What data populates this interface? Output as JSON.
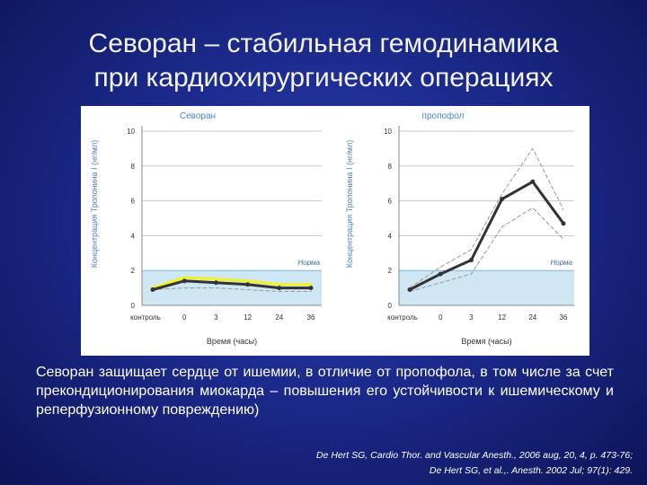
{
  "slide": {
    "title_line1": "Севоран – стабильная гемодинамика",
    "title_line2": "при кардиохирургических операциях",
    "body": "Севоран защищает сердце от ишемии, в отличие от пропофола, в том числе за счет прекондиционирования миокарда – повышения его устойчивости к ишемическому и реперфузионному повреждению)",
    "ref1": "De Hert SG, Cardio Thor. and Vascular Anesth., 2006 aug, 20, 4, p. 473-76;",
    "ref2": "De Hert SG, et al.,. Anesth. 2002 Jul; 97(1): 429."
  },
  "chart_data": [
    {
      "type": "line",
      "title": "Севоран",
      "xlabel": "Время (часы)",
      "ylabel": "Концентрация Тропонина I (нг/мл)",
      "categories": [
        "контроль",
        "0",
        "3",
        "12",
        "24",
        "36"
      ],
      "ylim": [
        0,
        10
      ],
      "yticks": [
        0,
        2,
        4,
        6,
        8,
        10
      ],
      "norm_label": "Норма",
      "norm_range": [
        0,
        2
      ],
      "series": [
        {
          "role": "mean",
          "values": [
            0.9,
            1.4,
            1.3,
            1.2,
            1.0,
            1.0
          ],
          "color": "#333333"
        },
        {
          "role": "upper",
          "values": [
            1.0,
            1.6,
            1.5,
            1.4,
            1.2,
            1.2
          ],
          "color": "#f2f21e"
        },
        {
          "role": "lower",
          "values": [
            0.9,
            1.0,
            1.0,
            0.9,
            0.8,
            0.8
          ],
          "color": "#999999"
        }
      ]
    },
    {
      "type": "line",
      "title": "пропофол",
      "xlabel": "Время (часы)",
      "ylabel": "Концентрация Тропонина I (нг/мл)",
      "categories": [
        "контроль",
        "0",
        "3",
        "12",
        "24",
        "36"
      ],
      "ylim": [
        0,
        10
      ],
      "yticks": [
        0,
        2,
        4,
        6,
        8,
        10
      ],
      "norm_label": "Норма",
      "norm_range": [
        0,
        2
      ],
      "series": [
        {
          "role": "mean",
          "values": [
            0.9,
            1.8,
            2.6,
            6.1,
            7.1,
            4.7
          ],
          "color": "#333333"
        },
        {
          "role": "upper",
          "values": [
            1.0,
            2.2,
            3.2,
            6.4,
            9.0,
            5.5
          ],
          "color": "#999999"
        },
        {
          "role": "lower",
          "values": [
            0.8,
            1.3,
            1.8,
            4.5,
            5.6,
            3.8
          ],
          "color": "#999999"
        }
      ]
    }
  ]
}
